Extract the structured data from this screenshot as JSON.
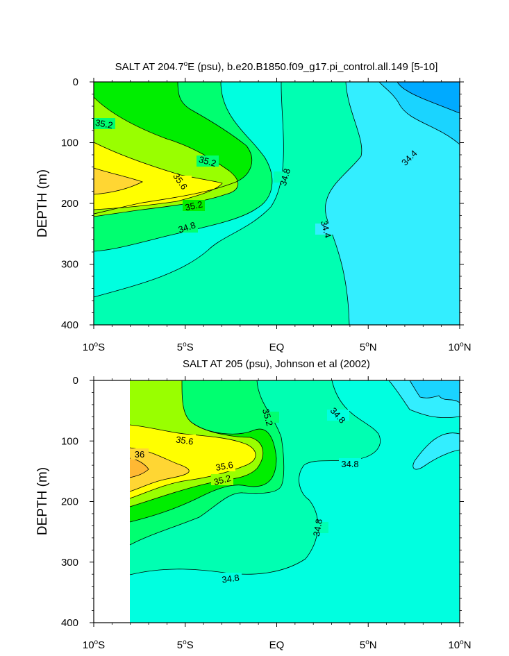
{
  "chart_data": [
    {
      "type": "contour",
      "title_main": "SALT AT 204.7",
      "title_sup": "o",
      "title_rest": "E (psu), b.e20.B1850.f09_g17.pi_control.all.149 [5-10]",
      "ylabel": "DEPTH (m)",
      "y_range": [
        0,
        400
      ],
      "y_ticks": [
        "0",
        "100",
        "200",
        "300",
        "400"
      ],
      "x_range": [
        -10,
        10
      ],
      "x_ticks": [
        {
          "value": -10,
          "num": "10",
          "sup": "o",
          "hemi": "S"
        },
        {
          "value": -5,
          "num": "5",
          "sup": "o",
          "hemi": "S"
        },
        {
          "value": 0,
          "num": "EQ",
          "sup": "",
          "hemi": ""
        },
        {
          "value": 5,
          "num": "5",
          "sup": "o",
          "hemi": "N"
        },
        {
          "value": 10,
          "num": "10",
          "sup": "o",
          "hemi": "N"
        }
      ],
      "contour_labels": [
        "35.2",
        "35.2",
        "35.6",
        "35.2",
        "34.8",
        "34.8",
        "34.4",
        "34.4"
      ]
    },
    {
      "type": "contour",
      "title_main": "SALT AT 205 (psu), Johnson et al (2002)",
      "title_sup": "",
      "title_rest": "",
      "ylabel": "DEPTH (m)",
      "y_range": [
        0,
        400
      ],
      "y_ticks": [
        "0",
        "100",
        "200",
        "300",
        "400"
      ],
      "x_range": [
        -10,
        10
      ],
      "x_ticks": [
        {
          "value": -10,
          "num": "10",
          "sup": "o",
          "hemi": "S"
        },
        {
          "value": -5,
          "num": "5",
          "sup": "o",
          "hemi": "S"
        },
        {
          "value": 0,
          "num": "EQ",
          "sup": "",
          "hemi": ""
        },
        {
          "value": 5,
          "num": "5",
          "sup": "o",
          "hemi": "N"
        },
        {
          "value": 10,
          "num": "10",
          "sup": "o",
          "hemi": "N"
        }
      ],
      "contour_labels": [
        "35.6",
        "36",
        "35.6",
        "35.2",
        "35.2",
        "34.8",
        "34.8",
        "34.8",
        "34.8"
      ]
    }
  ],
  "colors": {
    "c34_0": "#00aaff",
    "c34_2": "#1ad4ff",
    "c34_4": "#33eeff",
    "c34_6": "#00ffe0",
    "c34_8": "#00ffb2",
    "c35_0": "#00ff70",
    "c35_2": "#00ee00",
    "c35_4": "#99ff00",
    "c35_6": "#ffff00",
    "c35_8": "#ffd633",
    "c36_0": "#ffb833"
  }
}
